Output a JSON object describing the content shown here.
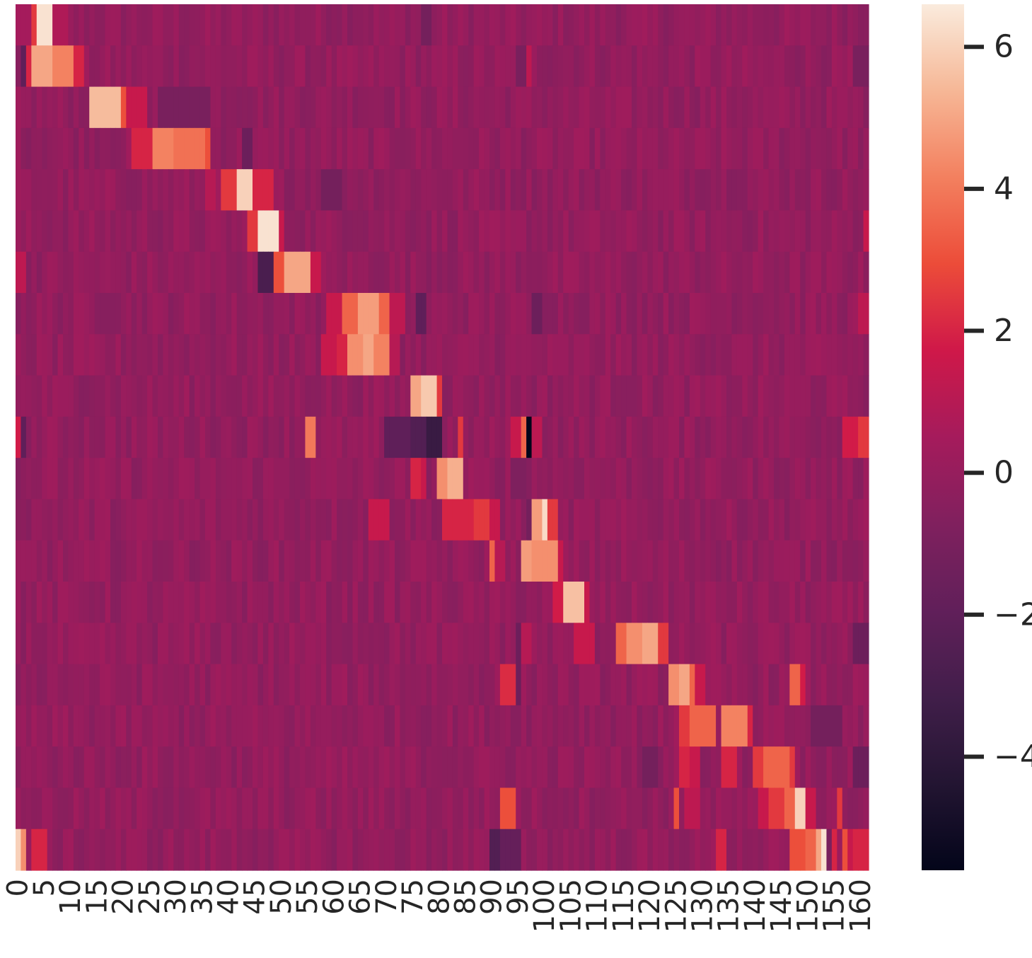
{
  "chart_data": {
    "type": "heatmap",
    "title": "",
    "xlabel": "",
    "ylabel": "",
    "n_cols": 162,
    "n_rows": 21,
    "x_tick_labels": [
      "0",
      "5",
      "10",
      "15",
      "20",
      "25",
      "30",
      "35",
      "40",
      "45",
      "50",
      "55",
      "60",
      "65",
      "70",
      "75",
      "80",
      "85",
      "90",
      "95",
      "100",
      "105",
      "110",
      "115",
      "120",
      "125",
      "130",
      "135",
      "140",
      "145",
      "150",
      "155",
      "160"
    ],
    "x_tick_step": 5,
    "y_tick_labels": [],
    "colormap": "rocket",
    "vmin": -5.6,
    "vmax": 6.6,
    "colorbar_ticks": [
      6,
      4,
      2,
      0,
      -2,
      -4
    ],
    "colorbar_tick_labels": [
      "6",
      "4",
      "2",
      "0",
      "−2",
      "−4"
    ],
    "background_value": -0.1,
    "highlights": [
      {
        "row": 0,
        "segments": [
          [
            0,
            2,
            0.5
          ],
          [
            3,
            3,
            2.5
          ],
          [
            4,
            6,
            6.4
          ],
          [
            7,
            9,
            0.8
          ],
          [
            77,
            78,
            -1.2
          ]
        ]
      },
      {
        "row": 1,
        "segments": [
          [
            1,
            1,
            -2.0
          ],
          [
            2,
            2,
            2.0
          ],
          [
            3,
            6,
            5.0
          ],
          [
            7,
            10,
            4.2
          ],
          [
            11,
            12,
            2.0
          ],
          [
            97,
            97,
            1.2
          ],
          [
            95,
            96,
            -1.0
          ],
          [
            159,
            161,
            -1.0
          ]
        ]
      },
      {
        "row": 2,
        "segments": [
          [
            14,
            19,
            5.5
          ],
          [
            20,
            20,
            3.0
          ],
          [
            21,
            24,
            1.5
          ],
          [
            27,
            36,
            -1.0
          ]
        ]
      },
      {
        "row": 3,
        "segments": [
          [
            22,
            25,
            2.0
          ],
          [
            26,
            29,
            4.2
          ],
          [
            30,
            35,
            3.8
          ],
          [
            36,
            36,
            3.0
          ],
          [
            43,
            44,
            -1.5
          ]
        ]
      },
      {
        "row": 4,
        "segments": [
          [
            36,
            37,
            1.0
          ],
          [
            39,
            41,
            2.5
          ],
          [
            42,
            44,
            6.0
          ],
          [
            45,
            48,
            2.0
          ],
          [
            58,
            61,
            -1.2
          ]
        ]
      },
      {
        "row": 5,
        "segments": [
          [
            44,
            45,
            2.5
          ],
          [
            46,
            49,
            6.4
          ],
          [
            50,
            50,
            1.5
          ],
          [
            161,
            161,
            1.5
          ]
        ]
      },
      {
        "row": 6,
        "segments": [
          [
            0,
            1,
            1.2
          ],
          [
            46,
            48,
            -2.8
          ],
          [
            49,
            50,
            3.0
          ],
          [
            51,
            55,
            5.0
          ],
          [
            56,
            57,
            1.5
          ]
        ]
      },
      {
        "row": 7,
        "segments": [
          [
            59,
            61,
            1.5
          ],
          [
            62,
            64,
            3.5
          ],
          [
            65,
            68,
            4.8
          ],
          [
            69,
            70,
            3.5
          ],
          [
            71,
            73,
            1.2
          ],
          [
            76,
            77,
            -2.0
          ],
          [
            98,
            99,
            -1.5
          ],
          [
            160,
            161,
            1.2
          ]
        ]
      },
      {
        "row": 8,
        "segments": [
          [
            58,
            60,
            1.5
          ],
          [
            61,
            62,
            2.0
          ],
          [
            63,
            65,
            4.5
          ],
          [
            66,
            67,
            5.0
          ],
          [
            68,
            70,
            4.2
          ],
          [
            71,
            72,
            1.0
          ]
        ]
      },
      {
        "row": 9,
        "segments": [
          [
            75,
            76,
            5.0
          ],
          [
            77,
            79,
            5.8
          ],
          [
            80,
            80,
            2.5
          ]
        ]
      },
      {
        "row": 10,
        "segments": [
          [
            0,
            0,
            1.8
          ],
          [
            1,
            1,
            -2.0
          ],
          [
            55,
            56,
            4.0
          ],
          [
            70,
            74,
            -2.0
          ],
          [
            75,
            77,
            -2.5
          ],
          [
            78,
            80,
            -3.5
          ],
          [
            84,
            84,
            2.5
          ],
          [
            94,
            95,
            1.5
          ],
          [
            96,
            96,
            3.5
          ],
          [
            97,
            97,
            -5.6
          ],
          [
            98,
            99,
            1.2
          ],
          [
            157,
            159,
            1.8
          ],
          [
            160,
            161,
            2.5
          ]
        ]
      },
      {
        "row": 11,
        "segments": [
          [
            75,
            76,
            2.0
          ],
          [
            77,
            77,
            1.5
          ],
          [
            80,
            81,
            4.5
          ],
          [
            82,
            84,
            5.2
          ],
          [
            94,
            96,
            -0.8
          ]
        ]
      },
      {
        "row": 12,
        "segments": [
          [
            67,
            70,
            1.5
          ],
          [
            81,
            86,
            2.0
          ],
          [
            87,
            89,
            2.5
          ],
          [
            90,
            91,
            1.5
          ],
          [
            97,
            97,
            -1.2
          ],
          [
            98,
            99,
            4.8
          ],
          [
            100,
            100,
            6.2
          ],
          [
            101,
            102,
            2.5
          ]
        ]
      },
      {
        "row": 13,
        "segments": [
          [
            90,
            90,
            3.5
          ],
          [
            91,
            92,
            1.0
          ],
          [
            96,
            97,
            4.8
          ],
          [
            98,
            102,
            4.5
          ],
          [
            103,
            103,
            1.5
          ]
        ]
      },
      {
        "row": 14,
        "segments": [
          [
            102,
            103,
            1.8
          ],
          [
            104,
            107,
            5.6
          ],
          [
            108,
            108,
            1.5
          ]
        ]
      },
      {
        "row": 15,
        "segments": [
          [
            95,
            95,
            -1.5
          ],
          [
            96,
            97,
            1.0
          ],
          [
            106,
            109,
            1.5
          ],
          [
            114,
            115,
            3.5
          ],
          [
            116,
            118,
            4.5
          ],
          [
            119,
            121,
            5.0
          ],
          [
            122,
            123,
            2.5
          ],
          [
            159,
            161,
            -1.5
          ]
        ]
      },
      {
        "row": 16,
        "segments": [
          [
            92,
            94,
            2.2
          ],
          [
            95,
            95,
            -1.5
          ],
          [
            124,
            125,
            4.5
          ],
          [
            126,
            127,
            5.0
          ],
          [
            128,
            128,
            3.5
          ],
          [
            129,
            130,
            1.5
          ],
          [
            147,
            148,
            3.5
          ],
          [
            149,
            149,
            1.8
          ]
        ]
      },
      {
        "row": 17,
        "segments": [
          [
            126,
            127,
            2.5
          ],
          [
            128,
            132,
            3.5
          ],
          [
            134,
            138,
            4.2
          ],
          [
            139,
            139,
            2.0
          ],
          [
            151,
            156,
            -1.2
          ]
        ]
      },
      {
        "row": 18,
        "segments": [
          [
            119,
            121,
            -1.2
          ],
          [
            126,
            127,
            2.0
          ],
          [
            128,
            129,
            1.5
          ],
          [
            134,
            136,
            2.0
          ],
          [
            140,
            141,
            2.5
          ],
          [
            142,
            146,
            3.5
          ],
          [
            147,
            147,
            2.5
          ],
          [
            159,
            161,
            -1.5
          ]
        ]
      },
      {
        "row": 19,
        "segments": [
          [
            92,
            94,
            3.0
          ],
          [
            125,
            125,
            3.0
          ],
          [
            127,
            129,
            1.2
          ],
          [
            141,
            142,
            1.5
          ],
          [
            143,
            145,
            2.5
          ],
          [
            146,
            147,
            3.5
          ],
          [
            148,
            149,
            6.0
          ],
          [
            150,
            151,
            1.5
          ],
          [
            156,
            156,
            2.5
          ]
        ]
      },
      {
        "row": 20,
        "segments": [
          [
            0,
            0,
            6.0
          ],
          [
            1,
            1,
            4.5
          ],
          [
            3,
            5,
            2.0
          ],
          [
            90,
            91,
            -2.5
          ],
          [
            92,
            95,
            -1.8
          ],
          [
            133,
            134,
            2.0
          ],
          [
            147,
            149,
            3.0
          ],
          [
            150,
            151,
            3.5
          ],
          [
            152,
            152,
            5.0
          ],
          [
            153,
            153,
            6.4
          ],
          [
            154,
            154,
            -1.0
          ],
          [
            155,
            155,
            2.0
          ],
          [
            157,
            157,
            3.0
          ],
          [
            158,
            158,
            1.5
          ],
          [
            159,
            161,
            2.0
          ]
        ]
      }
    ]
  }
}
